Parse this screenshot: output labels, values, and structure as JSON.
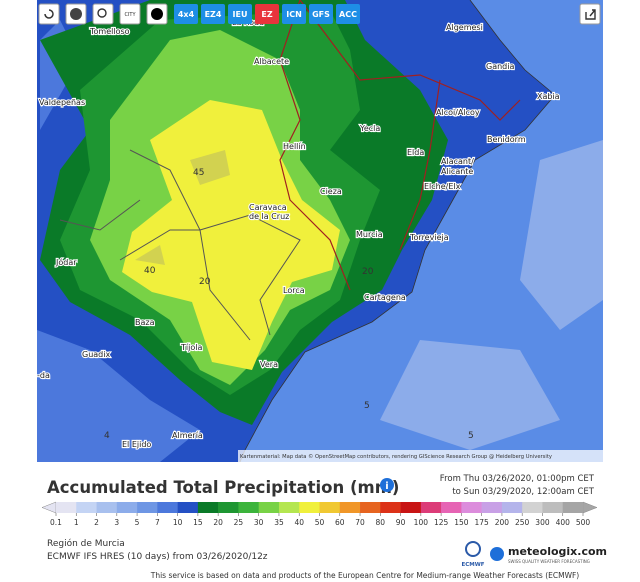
{
  "toolbar": {
    "city": "CITY",
    "buttons": [
      "4x4",
      "EZ4",
      "IEU",
      "EZ",
      "ICN",
      "GFS",
      "ACC"
    ]
  },
  "map": {
    "places": [
      "La Roda",
      "Tomelloso",
      "Albacete",
      "Algemesi",
      "Gandia",
      "Valdepeñas",
      "Xabia",
      "Alcoi/Alcoy",
      "Yecla",
      "Benidorm",
      "Hellín",
      "Elda",
      "Alacant/",
      "Alicante",
      "Elche/Elx",
      "Cieza",
      "Caravaca",
      "de la Cruz",
      "Murcia",
      "Torrevieja",
      "Jódar",
      "Lorca",
      "Cartagena",
      "Baza",
      "Tíjola",
      "Guadix",
      "Vera",
      "-da",
      "Almería",
      "El Ejido"
    ],
    "contours": [
      "45",
      "40",
      "20",
      "20",
      "5",
      "5",
      "4"
    ],
    "attribution": "Kartenmaterial: Map data © OpenStreetMap contributors, rendering GIScience Research Group @ Heidelberg University"
  },
  "header": {
    "title": "Accumulated Total Precipitation (mm)",
    "from": "From Thu 03/26/2020, 01:00pm CET",
    "to": "to Sun 03/29/2020, 12:00am CET"
  },
  "legend": {
    "ticks": [
      0.1,
      1,
      2,
      3,
      5,
      7,
      10,
      15,
      20,
      25,
      30,
      35,
      40,
      50,
      60,
      70,
      80,
      90,
      100,
      125,
      150,
      175,
      200,
      250,
      300,
      400,
      500
    ],
    "colors": [
      "#e4e4f2",
      "#c4d4f4",
      "#a8c0ee",
      "#8cacea",
      "#6e96e4",
      "#4c78dc",
      "#2450c4",
      "#0a7a28",
      "#1e9632",
      "#3cb43c",
      "#78d246",
      "#b4e650",
      "#f0f03c",
      "#f0c832",
      "#f09628",
      "#e66420",
      "#dc3218",
      "#c81414",
      "#dc3c78",
      "#e664b4",
      "#dc8cdc",
      "#c8a0e6",
      "#b4b4eb",
      "#d2d2d2",
      "#bdbdbd",
      "#a5a5a5"
    ]
  },
  "info": {
    "region": "Región de Murcia",
    "model": "ECMWF IFS HRES (10 days) from 03/26/2020/12z"
  },
  "logo": {
    "ecmwf": "ECMWF",
    "name": "meteologix.com",
    "tagline": "SWISS QUALITY WEATHER FORECASTING"
  },
  "footer": "This service is based on data and products of the European Centre for Medium-range Weather Forecasts (ECMWF)"
}
